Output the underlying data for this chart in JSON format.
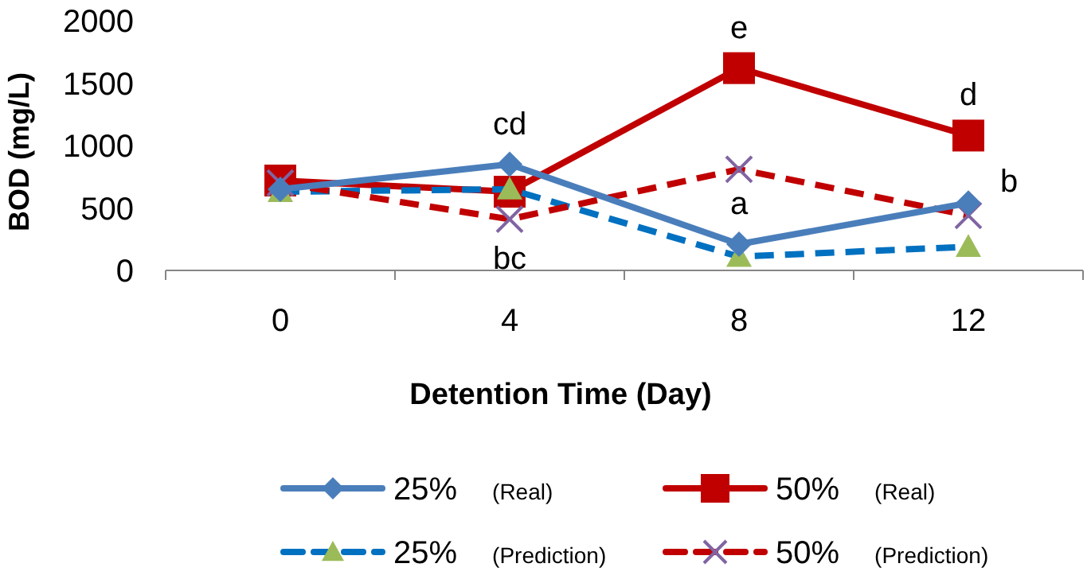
{
  "chart_data": {
    "type": "line",
    "xlabel": "Detention Time (Day)",
    "ylabel": "BOD (mg/L)",
    "categories": [
      "0",
      "4",
      "8",
      "12"
    ],
    "ylim": [
      0,
      2000
    ],
    "yticks": [
      0,
      500,
      1000,
      1500,
      2000
    ],
    "grid": false,
    "legend": "bottom",
    "series": [
      {
        "name": "25% (Real)",
        "color": "#4a7ebb",
        "marker": "diamond",
        "line_style": "solid",
        "values": [
          650,
          850,
          210,
          540
        ]
      },
      {
        "name": "50% (Real)",
        "color": "#c00000",
        "marker": "square",
        "line_style": "solid",
        "values": [
          720,
          630,
          1620,
          1080
        ]
      },
      {
        "name": "25% (Prediction)",
        "color": "#0070c0",
        "colors": [
          "#9bbb59",
          "#9bbb59",
          "#9bbb59",
          "#9bbb59"
        ],
        "marker": "triangle",
        "line_style": "dashed",
        "values": [
          630,
          650,
          110,
          190
        ]
      },
      {
        "name": "50% (Prediction)",
        "color": "#c00000",
        "colors": [
          "#8064a2",
          "#8064a2",
          "#8064a2",
          "#8064a2"
        ],
        "marker": "cross",
        "line_style": "dashed",
        "values": [
          700,
          410,
          810,
          440
        ]
      }
    ],
    "annotations": [
      {
        "text": "cd",
        "x": "4",
        "y": 850
      },
      {
        "text": "bc",
        "x": "4",
        "y": 410
      },
      {
        "text": "e",
        "x": "8",
        "y": 1620
      },
      {
        "text": "a",
        "x": "8",
        "y": 210
      },
      {
        "text": "d",
        "x": "12",
        "y": 1080
      },
      {
        "text": "b",
        "x": "12",
        "y": 540
      }
    ]
  }
}
